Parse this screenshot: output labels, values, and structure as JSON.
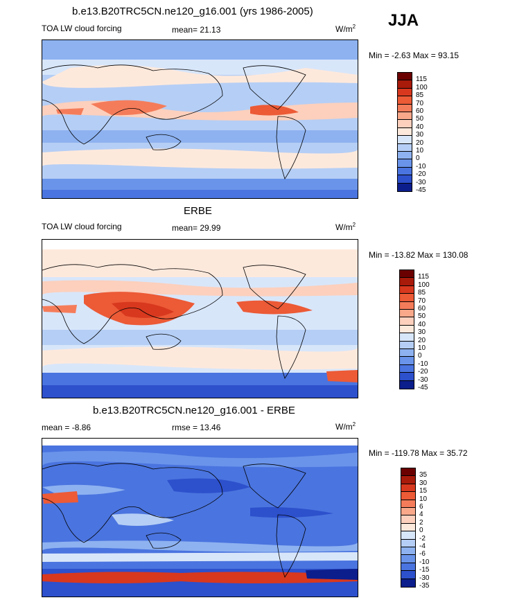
{
  "season": "JJA",
  "panels": [
    {
      "title": "b.e13.B20TRC5CN.ne120_g16.001 (yrs 1986-2005)",
      "left_label": "TOA LW cloud forcing",
      "center_label": "mean=  21.13",
      "units": "W/m",
      "units_sup": "2",
      "minmax": "Min =  -2.63 Max =  93.15",
      "levels": [
        "115",
        "100",
        "85",
        "70",
        "60",
        "50",
        "40",
        "30",
        "20",
        "10",
        "0",
        "-10",
        "-20",
        "-30",
        "-45"
      ],
      "colors": [
        "#6b0000",
        "#a81a0a",
        "#d8381e",
        "#ec5a36",
        "#f57c5a",
        "#f9a88a",
        "#fcd0bd",
        "#fde9dc",
        "#d8e6fa",
        "#b5cef5",
        "#8eb2f0",
        "#6a94ea",
        "#4a74df",
        "#2d50cc",
        "#0c1e8c"
      ]
    },
    {
      "title": "ERBE",
      "left_label": "TOA LW cloud forcing",
      "center_label": "mean=  29.99",
      "units": "W/m",
      "units_sup": "2",
      "minmax": "Min = -13.82 Max = 130.08",
      "levels": [
        "115",
        "100",
        "85",
        "70",
        "60",
        "50",
        "40",
        "30",
        "20",
        "10",
        "0",
        "-10",
        "-20",
        "-30",
        "-45"
      ],
      "colors": [
        "#6b0000",
        "#a81a0a",
        "#d8381e",
        "#ec5a36",
        "#f57c5a",
        "#f9a88a",
        "#fcd0bd",
        "#fde9dc",
        "#d8e6fa",
        "#b5cef5",
        "#8eb2f0",
        "#6a94ea",
        "#4a74df",
        "#2d50cc",
        "#0c1e8c"
      ]
    },
    {
      "title": "b.e13.B20TRC5CN.ne120_g16.001 - ERBE",
      "left_label": "mean =  -8.86",
      "center_label": "rmse =  13.46",
      "units": "W/m",
      "units_sup": "2",
      "minmax": "Min = -119.78 Max =  35.72",
      "levels": [
        "35",
        "30",
        "15",
        "10",
        "6",
        "4",
        "2",
        "0",
        "-2",
        "-4",
        "-6",
        "-10",
        "-15",
        "-30",
        "-35"
      ],
      "colors": [
        "#6b0000",
        "#a81a0a",
        "#d8381e",
        "#ec5a36",
        "#f57c5a",
        "#f9a88a",
        "#fcd0bd",
        "#fde9dc",
        "#d8e6fa",
        "#b5cef5",
        "#8eb2f0",
        "#6a94ea",
        "#4a74df",
        "#2d50cc",
        "#0c1e8c"
      ]
    }
  ]
}
